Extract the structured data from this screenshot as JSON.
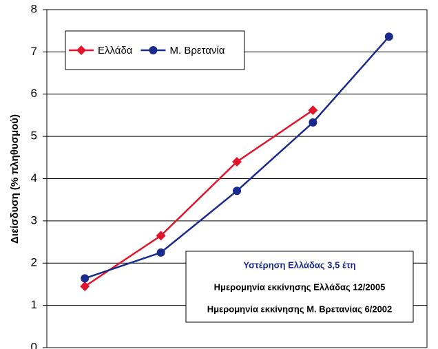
{
  "chart_data": {
    "type": "line",
    "y_label": "Διείσδυση (% πληθυσμού)",
    "categories": [
      null,
      null,
      null,
      null,
      null
    ],
    "series": [
      {
        "name": "Ελλάδα",
        "color": "#e0142a",
        "marker": "diamond",
        "values": [
          1.45,
          2.65,
          4.4,
          5.62,
          null
        ]
      },
      {
        "name": "Μ. Βρετανία",
        "color": "#1a2a8c",
        "marker": "circle",
        "values": [
          1.64,
          2.25,
          3.71,
          5.33,
          7.36
        ]
      }
    ],
    "ylim": [
      0,
      8
    ],
    "yticks": [
      0,
      1,
      2,
      3,
      4,
      5,
      6,
      7,
      8
    ],
    "grid": true,
    "legend": "upper left",
    "annotations": [
      {
        "text": "Υστέρηση Ελλάδας 3,5 έτη",
        "color": "#1a2a8c"
      },
      {
        "text": "Ημερομηνία εκκίνησης Ελλάδας 12/2005",
        "color": "#000000"
      },
      {
        "text": "Ημερομηνία εκκίνησης Μ. Βρετανίας 6/2002",
        "color": "#000000"
      }
    ]
  }
}
